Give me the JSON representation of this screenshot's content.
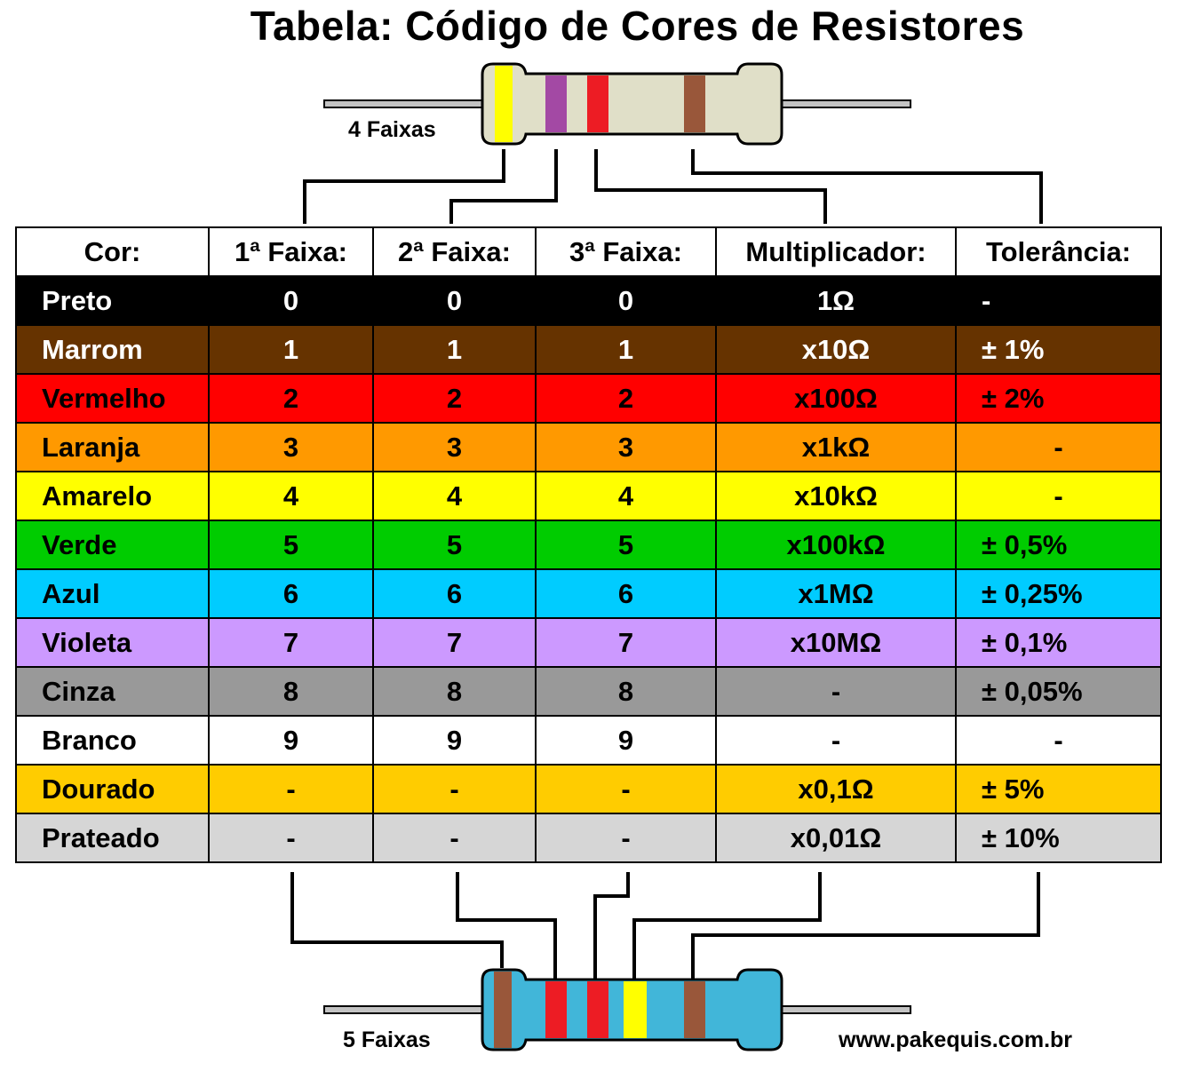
{
  "title": "Tabela: Código de Cores de Resistores",
  "resistor_4": {
    "label": "4 Faixas",
    "band_colors": [
      "#ffff00",
      "#a349a4",
      "#ed1c24",
      "#99573a"
    ],
    "body_color": "#e0dfc8"
  },
  "resistor_5": {
    "label": "5 Faixas",
    "band_colors": [
      "#99573a",
      "#ed1c24",
      "#ed1c24",
      "#ffff00",
      "#99573a"
    ],
    "body_color": "#41b6d9"
  },
  "website": "www.pakequis.com.br",
  "table": {
    "headers": [
      "Cor:",
      "1ª Faixa:",
      "2ª Faixa:",
      "3ª Faixa:",
      "Multiplicador:",
      "Tolerância:"
    ],
    "rows": [
      {
        "cells": [
          "Preto",
          "0",
          "0",
          "0",
          "1Ω",
          "-"
        ],
        "bg": "#000000",
        "fg": "#ffffff"
      },
      {
        "cells": [
          "Marrom",
          "1",
          "1",
          "1",
          "x10Ω",
          "± 1%"
        ],
        "bg": "#663300",
        "fg": "#ffffff"
      },
      {
        "cells": [
          "Vermelho",
          "2",
          "2",
          "2",
          "x100Ω",
          "± 2%"
        ],
        "bg": "#ff0000",
        "fg": "#000000"
      },
      {
        "cells": [
          "Laranja",
          "3",
          "3",
          "3",
          "x1kΩ",
          "-"
        ],
        "bg": "#ff9900",
        "fg": "#000000"
      },
      {
        "cells": [
          "Amarelo",
          "4",
          "4",
          "4",
          "x10kΩ",
          "-"
        ],
        "bg": "#ffff00",
        "fg": "#000000"
      },
      {
        "cells": [
          "Verde",
          "5",
          "5",
          "5",
          "x100kΩ",
          "± 0,5%"
        ],
        "bg": "#00cc00",
        "fg": "#000000"
      },
      {
        "cells": [
          "Azul",
          "6",
          "6",
          "6",
          "x1MΩ",
          "± 0,25%"
        ],
        "bg": "#00ccff",
        "fg": "#000000"
      },
      {
        "cells": [
          "Violeta",
          "7",
          "7",
          "7",
          "x10MΩ",
          "± 0,1%"
        ],
        "bg": "#cc99ff",
        "fg": "#000000"
      },
      {
        "cells": [
          "Cinza",
          "8",
          "8",
          "8",
          "-",
          "± 0,05%"
        ],
        "bg": "#999999",
        "fg": "#000000"
      },
      {
        "cells": [
          "Branco",
          "9",
          "9",
          "9",
          "-",
          "-"
        ],
        "bg": "#ffffff",
        "fg": "#000000"
      },
      {
        "cells": [
          "Dourado",
          "-",
          "-",
          "-",
          "x0,1Ω",
          "± 5%"
        ],
        "bg": "#ffcc00",
        "fg": "#000000"
      },
      {
        "cells": [
          "Prateado",
          "-",
          "-",
          "-",
          "x0,01Ω",
          "± 10%"
        ],
        "bg": "#d6d6d6",
        "fg": "#000000"
      }
    ]
  }
}
